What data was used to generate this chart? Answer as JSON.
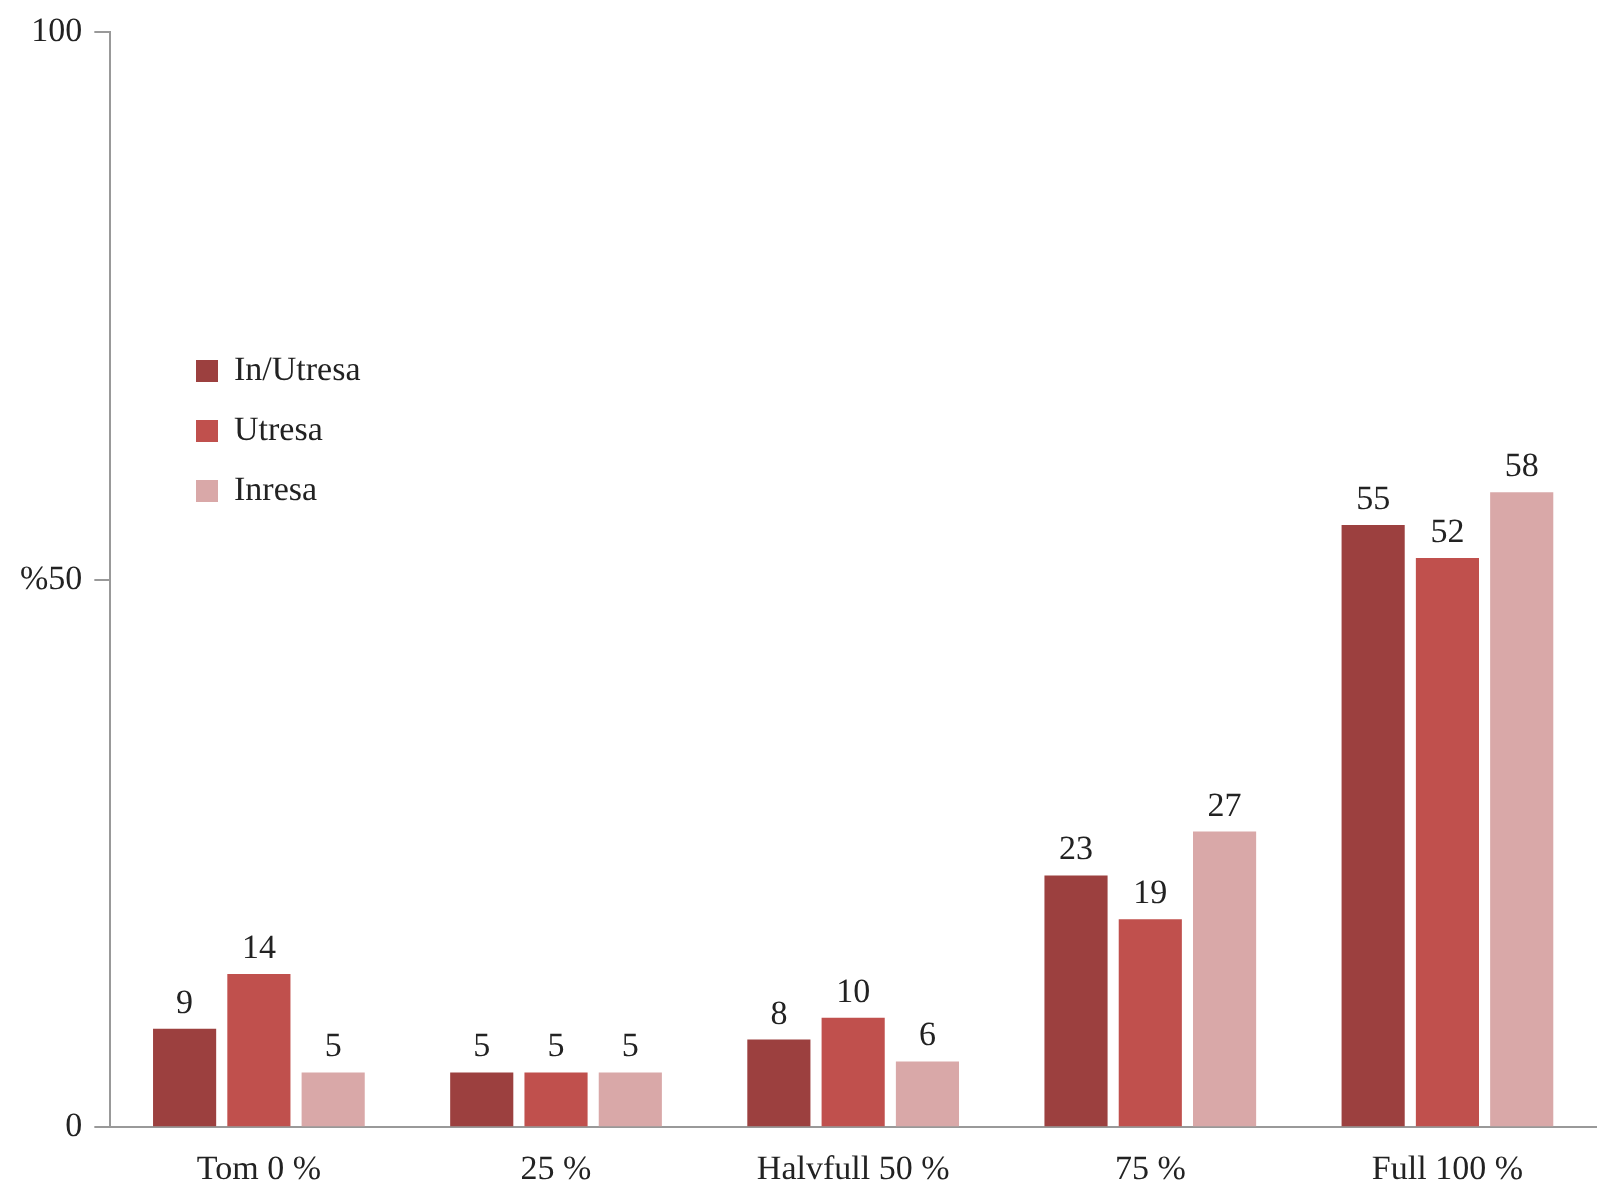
{
  "chart_data": {
    "type": "bar",
    "categories": [
      "Tom 0 %",
      "25 %",
      "Halvfull 50 %",
      "75 %",
      "Full 100 %"
    ],
    "series": [
      {
        "name": "In/Utresa",
        "color": "#9c403f",
        "values": [
          9,
          5,
          8,
          23,
          55
        ]
      },
      {
        "name": "Utresa",
        "color": "#c0504d",
        "values": [
          14,
          5,
          10,
          19,
          52
        ]
      },
      {
        "name": "Inresa",
        "color": "#d9a8a8",
        "values": [
          5,
          5,
          6,
          27,
          58
        ]
      }
    ],
    "ylim": [
      0,
      100
    ],
    "yticks": [
      0,
      {
        "value": 50,
        "label": "%50"
      },
      100
    ],
    "grid": false,
    "legend": "top left",
    "data_labels": true
  }
}
